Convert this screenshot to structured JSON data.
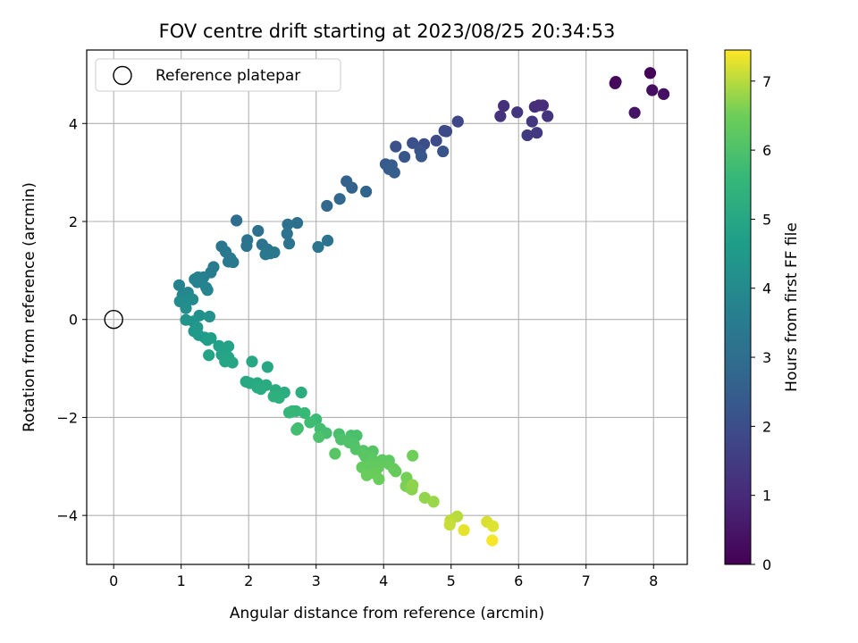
{
  "chart_data": {
    "type": "scatter",
    "title": "FOV centre drift starting at 2023/08/25 20:34:53",
    "xlabel": "Angular distance from reference (arcmin)",
    "ylabel": "Rotation from reference (arcmin)",
    "xlim": [
      -0.4,
      8.5
    ],
    "ylim": [
      -5.0,
      5.5
    ],
    "xticks": [
      "0",
      "1",
      "2",
      "3",
      "4",
      "5",
      "6",
      "7",
      "8"
    ],
    "yticks": [
      "−4",
      "−2",
      "0",
      "2",
      "4"
    ],
    "grid": true,
    "legend": {
      "location": "top-left",
      "entries": [
        "Reference platepar"
      ]
    },
    "reference_point": {
      "x": 0,
      "y": 0
    },
    "colorbar": {
      "label": "Hours from first FF file",
      "range": [
        0,
        7.45
      ],
      "ticks": [
        "0",
        "1",
        "2",
        "3",
        "4",
        "5",
        "6",
        "7"
      ],
      "colormap": "viridis"
    },
    "points": [
      {
        "x": 7.95,
        "y": 5.03,
        "t": 0.05
      },
      {
        "x": 7.44,
        "y": 4.85,
        "t": 0.15
      },
      {
        "x": 7.43,
        "y": 4.82,
        "t": 0.2
      },
      {
        "x": 7.98,
        "y": 4.68,
        "t": 0.3
      },
      {
        "x": 8.15,
        "y": 4.6,
        "t": 0.35
      },
      {
        "x": 7.72,
        "y": 4.22,
        "t": 0.45
      },
      {
        "x": 6.3,
        "y": 4.37,
        "t": 1.0
      },
      {
        "x": 6.36,
        "y": 4.37,
        "t": 1.05
      },
      {
        "x": 6.24,
        "y": 4.34,
        "t": 1.1
      },
      {
        "x": 5.78,
        "y": 4.36,
        "t": 1.15
      },
      {
        "x": 5.73,
        "y": 4.15,
        "t": 1.2
      },
      {
        "x": 6.43,
        "y": 4.15,
        "t": 1.25
      },
      {
        "x": 5.98,
        "y": 4.23,
        "t": 1.3
      },
      {
        "x": 6.2,
        "y": 4.04,
        "t": 1.35
      },
      {
        "x": 6.27,
        "y": 3.81,
        "t": 1.4
      },
      {
        "x": 6.13,
        "y": 3.76,
        "t": 1.45
      },
      {
        "x": 5.1,
        "y": 4.04,
        "t": 1.8
      },
      {
        "x": 4.9,
        "y": 3.85,
        "t": 1.85
      },
      {
        "x": 4.93,
        "y": 3.84,
        "t": 1.9
      },
      {
        "x": 4.78,
        "y": 3.65,
        "t": 1.95
      },
      {
        "x": 4.6,
        "y": 3.58,
        "t": 2.0
      },
      {
        "x": 4.43,
        "y": 3.6,
        "t": 2.05
      },
      {
        "x": 4.18,
        "y": 3.53,
        "t": 2.1
      },
      {
        "x": 4.54,
        "y": 3.45,
        "t": 2.15
      },
      {
        "x": 4.88,
        "y": 3.43,
        "t": 2.2
      },
      {
        "x": 4.31,
        "y": 3.32,
        "t": 2.25
      },
      {
        "x": 4.56,
        "y": 3.33,
        "t": 2.3
      },
      {
        "x": 4.03,
        "y": 3.17,
        "t": 2.35
      },
      {
        "x": 4.12,
        "y": 3.15,
        "t": 2.4
      },
      {
        "x": 4.08,
        "y": 3.07,
        "t": 2.45
      },
      {
        "x": 4.16,
        "y": 3.0,
        "t": 2.5
      },
      {
        "x": 3.45,
        "y": 2.82,
        "t": 2.6
      },
      {
        "x": 3.53,
        "y": 2.69,
        "t": 2.65
      },
      {
        "x": 3.74,
        "y": 2.61,
        "t": 2.7
      },
      {
        "x": 3.35,
        "y": 2.46,
        "t": 2.75
      },
      {
        "x": 3.16,
        "y": 2.32,
        "t": 2.8
      },
      {
        "x": 1.82,
        "y": 2.02,
        "t": 3.0
      },
      {
        "x": 2.72,
        "y": 1.97,
        "t": 3.05
      },
      {
        "x": 2.58,
        "y": 1.94,
        "t": 3.1
      },
      {
        "x": 2.14,
        "y": 1.81,
        "t": 3.12
      },
      {
        "x": 2.57,
        "y": 1.75,
        "t": 3.14
      },
      {
        "x": 1.98,
        "y": 1.62,
        "t": 3.16
      },
      {
        "x": 3.17,
        "y": 1.61,
        "t": 3.18
      },
      {
        "x": 2.2,
        "y": 1.53,
        "t": 3.2
      },
      {
        "x": 2.6,
        "y": 1.55,
        "t": 3.22
      },
      {
        "x": 1.97,
        "y": 1.5,
        "t": 3.24
      },
      {
        "x": 3.03,
        "y": 1.48,
        "t": 3.26
      },
      {
        "x": 1.6,
        "y": 1.49,
        "t": 3.28
      },
      {
        "x": 2.28,
        "y": 1.43,
        "t": 3.3
      },
      {
        "x": 2.38,
        "y": 1.37,
        "t": 3.32
      },
      {
        "x": 2.32,
        "y": 1.35,
        "t": 3.34
      },
      {
        "x": 2.25,
        "y": 1.33,
        "t": 3.36
      },
      {
        "x": 1.66,
        "y": 1.38,
        "t": 3.38
      },
      {
        "x": 1.73,
        "y": 1.25,
        "t": 3.4
      },
      {
        "x": 1.7,
        "y": 1.18,
        "t": 3.42
      },
      {
        "x": 1.77,
        "y": 1.17,
        "t": 3.44
      },
      {
        "x": 1.48,
        "y": 1.07,
        "t": 3.46
      },
      {
        "x": 1.44,
        "y": 0.96,
        "t": 3.5
      },
      {
        "x": 1.33,
        "y": 0.86,
        "t": 3.6
      },
      {
        "x": 1.25,
        "y": 0.86,
        "t": 3.65
      },
      {
        "x": 1.2,
        "y": 0.82,
        "t": 3.7
      },
      {
        "x": 1.24,
        "y": 0.76,
        "t": 3.72
      },
      {
        "x": 0.97,
        "y": 0.7,
        "t": 3.75
      },
      {
        "x": 1.37,
        "y": 0.65,
        "t": 3.78
      },
      {
        "x": 1.39,
        "y": 0.6,
        "t": 3.8
      },
      {
        "x": 1.1,
        "y": 0.55,
        "t": 3.85
      },
      {
        "x": 1.02,
        "y": 0.5,
        "t": 3.9
      },
      {
        "x": 1.12,
        "y": 0.45,
        "t": 3.95
      },
      {
        "x": 1.17,
        "y": 0.41,
        "t": 4.0
      },
      {
        "x": 0.98,
        "y": 0.37,
        "t": 4.05
      },
      {
        "x": 1.05,
        "y": 0.35,
        "t": 4.1
      },
      {
        "x": 1.07,
        "y": 0.23,
        "t": 4.15
      },
      {
        "x": 1.27,
        "y": 0.08,
        "t": 4.2
      },
      {
        "x": 1.42,
        "y": 0.06,
        "t": 4.25
      },
      {
        "x": 1.07,
        "y": -0.01,
        "t": 4.3
      },
      {
        "x": 1.18,
        "y": -0.04,
        "t": 4.35
      },
      {
        "x": 1.24,
        "y": -0.16,
        "t": 4.45
      },
      {
        "x": 1.19,
        "y": -0.24,
        "t": 4.5
      },
      {
        "x": 1.26,
        "y": -0.32,
        "t": 4.55
      },
      {
        "x": 1.35,
        "y": -0.37,
        "t": 4.6
      },
      {
        "x": 1.39,
        "y": -0.42,
        "t": 4.65
      },
      {
        "x": 1.44,
        "y": -0.38,
        "t": 4.7
      },
      {
        "x": 1.56,
        "y": -0.54,
        "t": 4.75
      },
      {
        "x": 1.7,
        "y": -0.55,
        "t": 4.8
      },
      {
        "x": 1.63,
        "y": -0.62,
        "t": 4.82
      },
      {
        "x": 1.6,
        "y": -0.72,
        "t": 4.85
      },
      {
        "x": 1.41,
        "y": -0.73,
        "t": 4.88
      },
      {
        "x": 1.7,
        "y": -0.77,
        "t": 4.9
      },
      {
        "x": 1.76,
        "y": -0.88,
        "t": 4.93
      },
      {
        "x": 1.65,
        "y": -0.86,
        "t": 4.95
      },
      {
        "x": 2.05,
        "y": -0.86,
        "t": 4.98
      },
      {
        "x": 2.28,
        "y": -0.97,
        "t": 5.0
      },
      {
        "x": 1.96,
        "y": -1.27,
        "t": 5.03
      },
      {
        "x": 2.02,
        "y": -1.3,
        "t": 5.05
      },
      {
        "x": 2.13,
        "y": -1.3,
        "t": 5.08
      },
      {
        "x": 2.26,
        "y": -1.34,
        "t": 5.1
      },
      {
        "x": 2.13,
        "y": -1.39,
        "t": 5.13
      },
      {
        "x": 2.18,
        "y": -1.42,
        "t": 5.15
      },
      {
        "x": 2.4,
        "y": -1.44,
        "t": 5.18
      },
      {
        "x": 2.53,
        "y": -1.49,
        "t": 5.2
      },
      {
        "x": 2.78,
        "y": -1.49,
        "t": 5.23
      },
      {
        "x": 2.45,
        "y": -1.55,
        "t": 5.25
      },
      {
        "x": 2.37,
        "y": -1.57,
        "t": 5.28
      },
      {
        "x": 2.45,
        "y": -1.6,
        "t": 5.3
      },
      {
        "x": 2.65,
        "y": -1.87,
        "t": 5.5
      },
      {
        "x": 2.7,
        "y": -1.87,
        "t": 5.55
      },
      {
        "x": 2.6,
        "y": -1.9,
        "t": 5.6
      },
      {
        "x": 2.83,
        "y": -1.91,
        "t": 5.65
      },
      {
        "x": 3.0,
        "y": -2.04,
        "t": 5.7
      },
      {
        "x": 2.91,
        "y": -2.1,
        "t": 5.75
      },
      {
        "x": 2.73,
        "y": -2.22,
        "t": 5.8
      },
      {
        "x": 2.71,
        "y": -2.25,
        "t": 5.82
      },
      {
        "x": 3.06,
        "y": -2.23,
        "t": 5.85
      },
      {
        "x": 3.15,
        "y": -2.32,
        "t": 5.88
      },
      {
        "x": 3.34,
        "y": -2.34,
        "t": 5.9
      },
      {
        "x": 3.52,
        "y": -2.37,
        "t": 5.93
      },
      {
        "x": 3.6,
        "y": -2.37,
        "t": 5.95
      },
      {
        "x": 3.04,
        "y": -2.4,
        "t": 5.98
      },
      {
        "x": 3.37,
        "y": -2.45,
        "t": 6.0
      },
      {
        "x": 3.49,
        "y": -2.51,
        "t": 6.02
      },
      {
        "x": 3.56,
        "y": -2.55,
        "t": 6.05
      },
      {
        "x": 3.59,
        "y": -2.65,
        "t": 6.08
      },
      {
        "x": 3.7,
        "y": -2.68,
        "t": 6.1
      },
      {
        "x": 3.84,
        "y": -2.69,
        "t": 6.12
      },
      {
        "x": 3.7,
        "y": -2.73,
        "t": 6.14
      },
      {
        "x": 3.28,
        "y": -2.74,
        "t": 6.16
      },
      {
        "x": 3.79,
        "y": -2.78,
        "t": 6.18
      },
      {
        "x": 3.73,
        "y": -2.8,
        "t": 6.2
      },
      {
        "x": 3.83,
        "y": -2.85,
        "t": 6.22
      },
      {
        "x": 3.98,
        "y": -2.87,
        "t": 6.24
      },
      {
        "x": 4.08,
        "y": -2.88,
        "t": 6.26
      },
      {
        "x": 3.95,
        "y": -2.92,
        "t": 6.28
      },
      {
        "x": 4.08,
        "y": -2.95,
        "t": 6.3
      },
      {
        "x": 3.8,
        "y": -2.96,
        "t": 6.32
      },
      {
        "x": 3.68,
        "y": -3.02,
        "t": 6.34
      },
      {
        "x": 3.92,
        "y": -3.02,
        "t": 6.36
      },
      {
        "x": 4.15,
        "y": -3.05,
        "t": 6.38
      },
      {
        "x": 4.18,
        "y": -3.1,
        "t": 6.4
      },
      {
        "x": 3.88,
        "y": -3.15,
        "t": 6.42
      },
      {
        "x": 3.75,
        "y": -3.18,
        "t": 6.44
      },
      {
        "x": 3.93,
        "y": -3.26,
        "t": 6.46
      },
      {
        "x": 4.43,
        "y": -2.78,
        "t": 6.5
      },
      {
        "x": 4.34,
        "y": -3.23,
        "t": 6.55
      },
      {
        "x": 4.33,
        "y": -3.4,
        "t": 6.6
      },
      {
        "x": 4.4,
        "y": -3.45,
        "t": 6.65
      },
      {
        "x": 4.42,
        "y": -3.47,
        "t": 6.68
      },
      {
        "x": 4.43,
        "y": -3.38,
        "t": 6.72
      },
      {
        "x": 4.61,
        "y": -3.64,
        "t": 6.75
      },
      {
        "x": 4.74,
        "y": -3.72,
        "t": 6.8
      },
      {
        "x": 5.09,
        "y": -4.02,
        "t": 7.0
      },
      {
        "x": 4.99,
        "y": -4.1,
        "t": 7.05
      },
      {
        "x": 4.98,
        "y": -4.19,
        "t": 7.1
      },
      {
        "x": 5.53,
        "y": -4.13,
        "t": 7.2
      },
      {
        "x": 5.62,
        "y": -4.22,
        "t": 7.25
      },
      {
        "x": 5.19,
        "y": -4.3,
        "t": 7.3
      },
      {
        "x": 5.61,
        "y": -4.51,
        "t": 7.4
      }
    ]
  }
}
